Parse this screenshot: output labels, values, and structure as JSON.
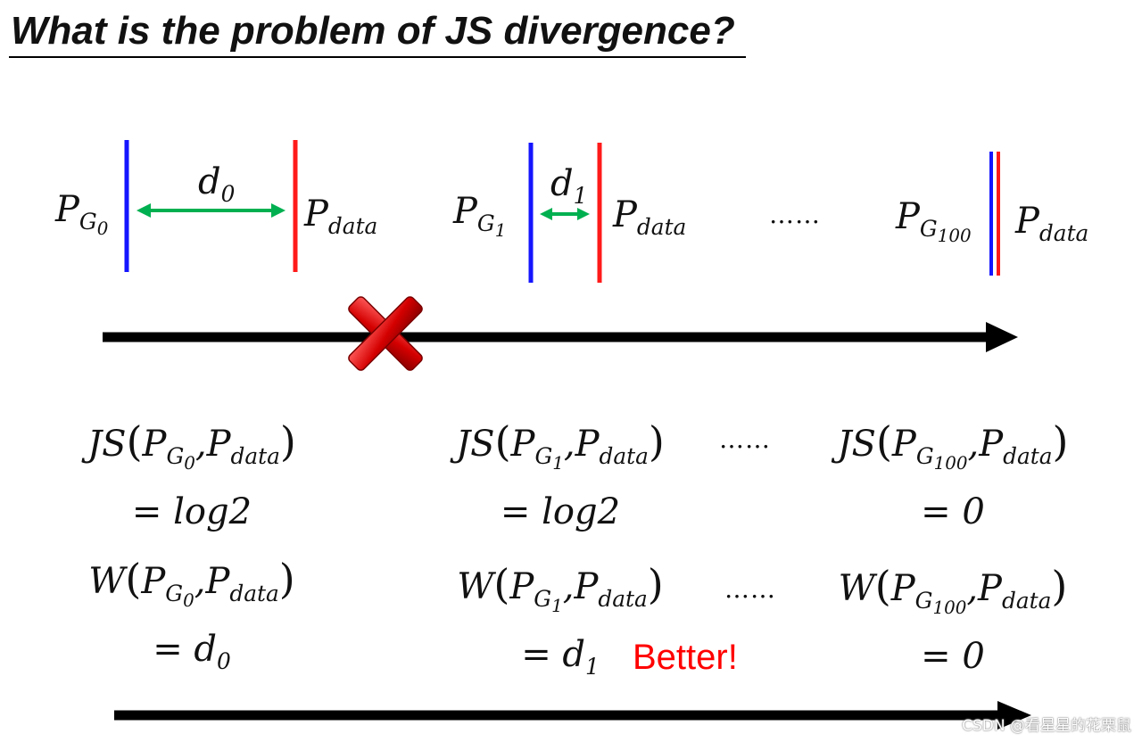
{
  "title": "What is the problem of JS divergence?",
  "symbols": {
    "p": "P",
    "g": "G",
    "data": "data",
    "d": "d",
    "js": "JS",
    "w": "W",
    "comma": ",",
    "open": "(",
    "close": ")"
  },
  "stages": [
    {
      "g_index": "0",
      "distance_index": "0",
      "js_value": "= log2",
      "w_value": "= d",
      "w_value_sub": "0"
    },
    {
      "g_index": "1",
      "distance_index": "1",
      "js_value": "= log2",
      "w_value": "= d",
      "w_value_sub": "1"
    },
    {
      "g_index": "100",
      "js_value": "= 0",
      "w_value": "= 0"
    }
  ],
  "ellipsis": "……",
  "better_label": "Better!",
  "watermark": "CSDN @看星星的花栗鼠",
  "colors": {
    "generator_line": "#1515ff",
    "data_line": "#ff1a1a",
    "distance_arrow": "#00b050",
    "better_text": "#ff0000",
    "cross": "#d40000"
  },
  "icons": {
    "cross": "red-x-cross-icon"
  }
}
